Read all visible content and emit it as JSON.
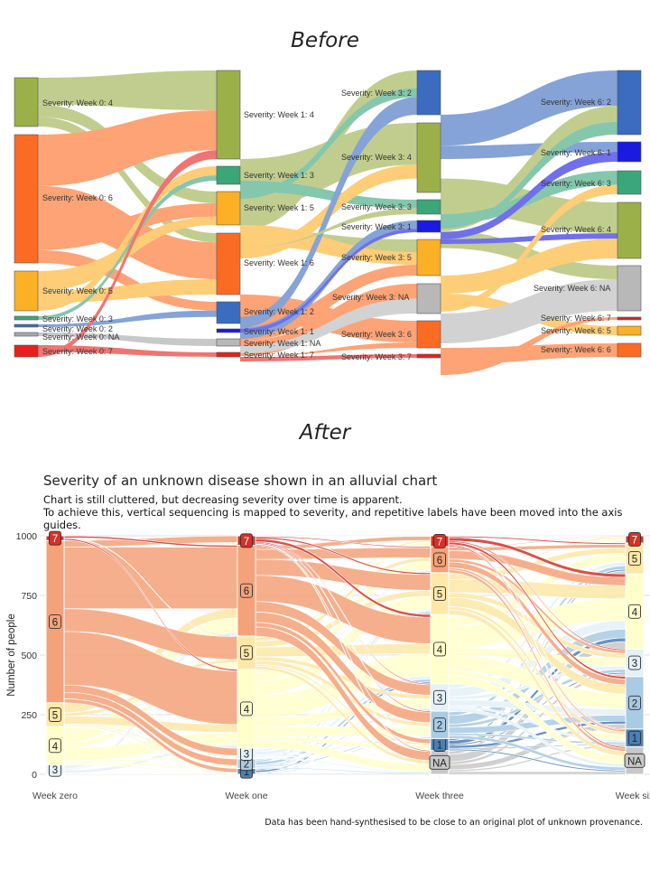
{
  "before": {
    "heading": "Before",
    "chart_data": {
      "type": "sankey",
      "columns": [
        {
          "nodes": [
            {
              "label": "Severity: Week 0: 4",
              "color": "#9cb04a"
            },
            {
              "label": "Severity: Week 0: 6",
              "color": "#fc6b23"
            },
            {
              "label": "Severity: Week 0: 5",
              "color": "#fcb026"
            },
            {
              "label": "Severity: Week 0: 3",
              "color": "#3aa67a"
            },
            {
              "label": "Severity: Week 0: 2",
              "color": "#3b6cc0"
            },
            {
              "label": "Severity: Week 0: NA",
              "color": "#a8a8a8"
            },
            {
              "label": "Severity: Week 0: 7",
              "color": "#e8201c"
            }
          ]
        },
        {
          "nodes": [
            {
              "label": "Severity: Week 1: 4",
              "color": "#9cb04a"
            },
            {
              "label": "Severity: Week 1: 3",
              "color": "#3aa67a"
            },
            {
              "label": "Severity: Week 1: 5",
              "color": "#fcb026"
            },
            {
              "label": "Severity: Week 1: 6",
              "color": "#fc6b23"
            },
            {
              "label": "Severity: Week 1: 2",
              "color": "#3b6cc0"
            },
            {
              "label": "Severity: Week 1: 1",
              "color": "#1a1ae0"
            },
            {
              "label": "Severity: Week 1: NA",
              "color": "#b8b8b8"
            },
            {
              "label": "Severity: Week 1: 7",
              "color": "#e8201c"
            }
          ]
        },
        {
          "nodes": [
            {
              "label": "Severity: Week 3: 2",
              "color": "#3b6cc0"
            },
            {
              "label": "Severity: Week 3: 4",
              "color": "#9cb04a"
            },
            {
              "label": "Severity: Week 3: 3",
              "color": "#3aa67a"
            },
            {
              "label": "Severity: Week 3: 1",
              "color": "#1a1ae0"
            },
            {
              "label": "Severity: Week 3: 5",
              "color": "#fcb026"
            },
            {
              "label": "Severity: Week 3: NA",
              "color": "#b8b8b8"
            },
            {
              "label": "Severity: Week 3: 6",
              "color": "#fc6b23"
            },
            {
              "label": "Severity: Week 3: 7",
              "color": "#e8201c"
            }
          ]
        },
        {
          "nodes": [
            {
              "label": "Severity: Week 6: 2",
              "color": "#3b6cc0"
            },
            {
              "label": "Severity: Week 6: 1",
              "color": "#1a1ae0"
            },
            {
              "label": "Severity: Week 6: 3",
              "color": "#3aa67a"
            },
            {
              "label": "Severity: Week 6: 4",
              "color": "#9cb04a"
            },
            {
              "label": "Severity: Week 6: NA",
              "color": "#b8b8b8"
            },
            {
              "label": "Severity: Week 6: 7",
              "color": "#e8201c"
            },
            {
              "label": "Severity: Week 6: 5",
              "color": "#fcb026"
            },
            {
              "label": "Severity: Week 6: 6",
              "color": "#fc6b23"
            }
          ]
        }
      ]
    }
  },
  "after": {
    "heading": "After",
    "title": "Severity of an unknown disease shown in an alluvial chart",
    "subtitle_1": "Chart is still cluttered, but decreasing severity over time is apparent.",
    "subtitle_2": "To achieve this, vertical sequencing is mapped to severity, and repetitive labels have been moved into the axis guides.",
    "caption": "Data has been hand-synthesised to be close to an original plot of unknown provenance.",
    "chart_data": {
      "type": "alluvial",
      "ylabel": "Number of people",
      "xlabel": "",
      "ylim": [
        0,
        1000
      ],
      "yticks": [
        0,
        250,
        500,
        750,
        1000
      ],
      "grid": true,
      "categories": [
        "Week zero",
        "Week one",
        "Week three",
        "Week six"
      ],
      "severity_colors": {
        "1": "#4d7fb5",
        "2": "#a9cbe3",
        "3": "#e4f1f8",
        "4": "#ffffcc",
        "5": "#fde8a8",
        "6": "#f4a279",
        "7": "#d73027",
        "NA": "#c8c8c8"
      },
      "stacks": [
        [
          {
            "level": "3",
            "value": 40
          },
          {
            "level": "4",
            "value": 160
          },
          {
            "level": "5",
            "value": 100
          },
          {
            "level": "6",
            "value": 680
          },
          {
            "level": "7",
            "value": 20
          }
        ],
        [
          {
            "level": "1",
            "value": 25
          },
          {
            "level": "2",
            "value": 40
          },
          {
            "level": "3",
            "value": 45
          },
          {
            "level": "4",
            "value": 330
          },
          {
            "level": "5",
            "value": 140
          },
          {
            "level": "6",
            "value": 380
          },
          {
            "level": "7",
            "value": 40
          }
        ],
        [
          {
            "level": "NA",
            "value": 100
          },
          {
            "level": "1",
            "value": 50
          },
          {
            "level": "2",
            "value": 115
          },
          {
            "level": "3",
            "value": 115
          },
          {
            "level": "4",
            "value": 290
          },
          {
            "level": "5",
            "value": 175
          },
          {
            "level": "6",
            "value": 110
          },
          {
            "level": "7",
            "value": 45
          }
        ],
        [
          {
            "level": "NA",
            "value": 115
          },
          {
            "level": "1",
            "value": 75
          },
          {
            "level": "2",
            "value": 220
          },
          {
            "level": "3",
            "value": 115
          },
          {
            "level": "4",
            "value": 315
          },
          {
            "level": "5",
            "value": 130
          },
          {
            "level": "7",
            "value": 30
          }
        ]
      ]
    }
  }
}
